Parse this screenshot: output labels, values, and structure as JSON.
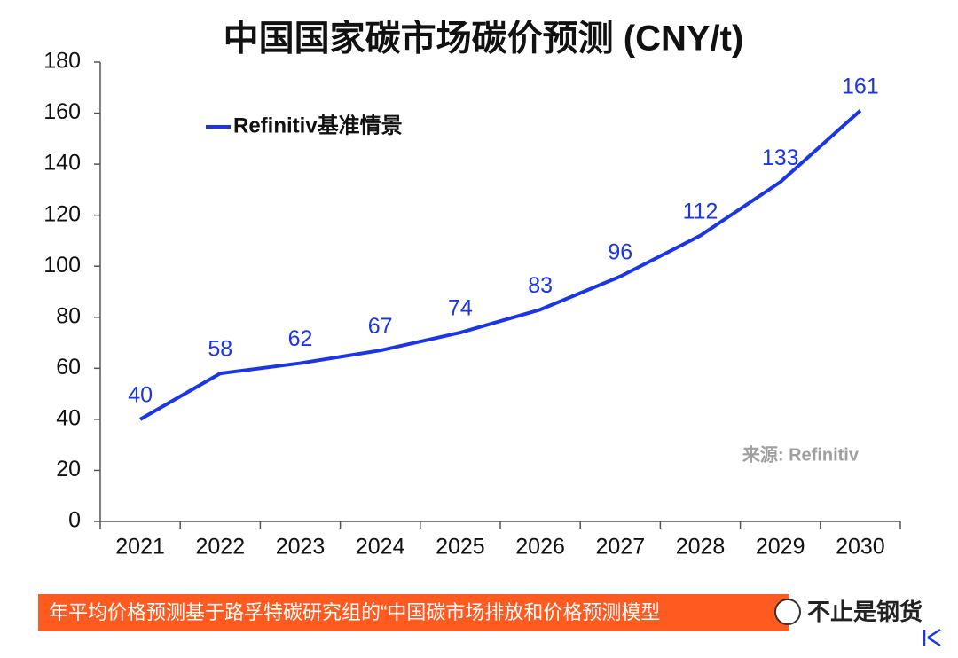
{
  "chart_data": {
    "type": "line",
    "title": "中国国家碳市场碳价预测 (CNY/t)",
    "categories": [
      "2021",
      "2022",
      "2023",
      "2024",
      "2025",
      "2026",
      "2027",
      "2028",
      "2029",
      "2030"
    ],
    "series": [
      {
        "name": "Refinitiv基准情景",
        "color": "#1a36e6",
        "values": [
          40,
          58,
          62,
          67,
          74,
          83,
          96,
          112,
          133,
          161
        ]
      }
    ],
    "ylim": [
      0,
      180
    ],
    "yticks": [
      0,
      20,
      40,
      60,
      80,
      100,
      120,
      140,
      160,
      180
    ],
    "grid": false,
    "legend": "upper left",
    "source": "来源: Refinitiv"
  },
  "banner": {
    "text": "年平均价格预测基于路孚特碳研究组的“中国碳市场排放和价格预测模型",
    "watermark": "不止是钢货"
  }
}
